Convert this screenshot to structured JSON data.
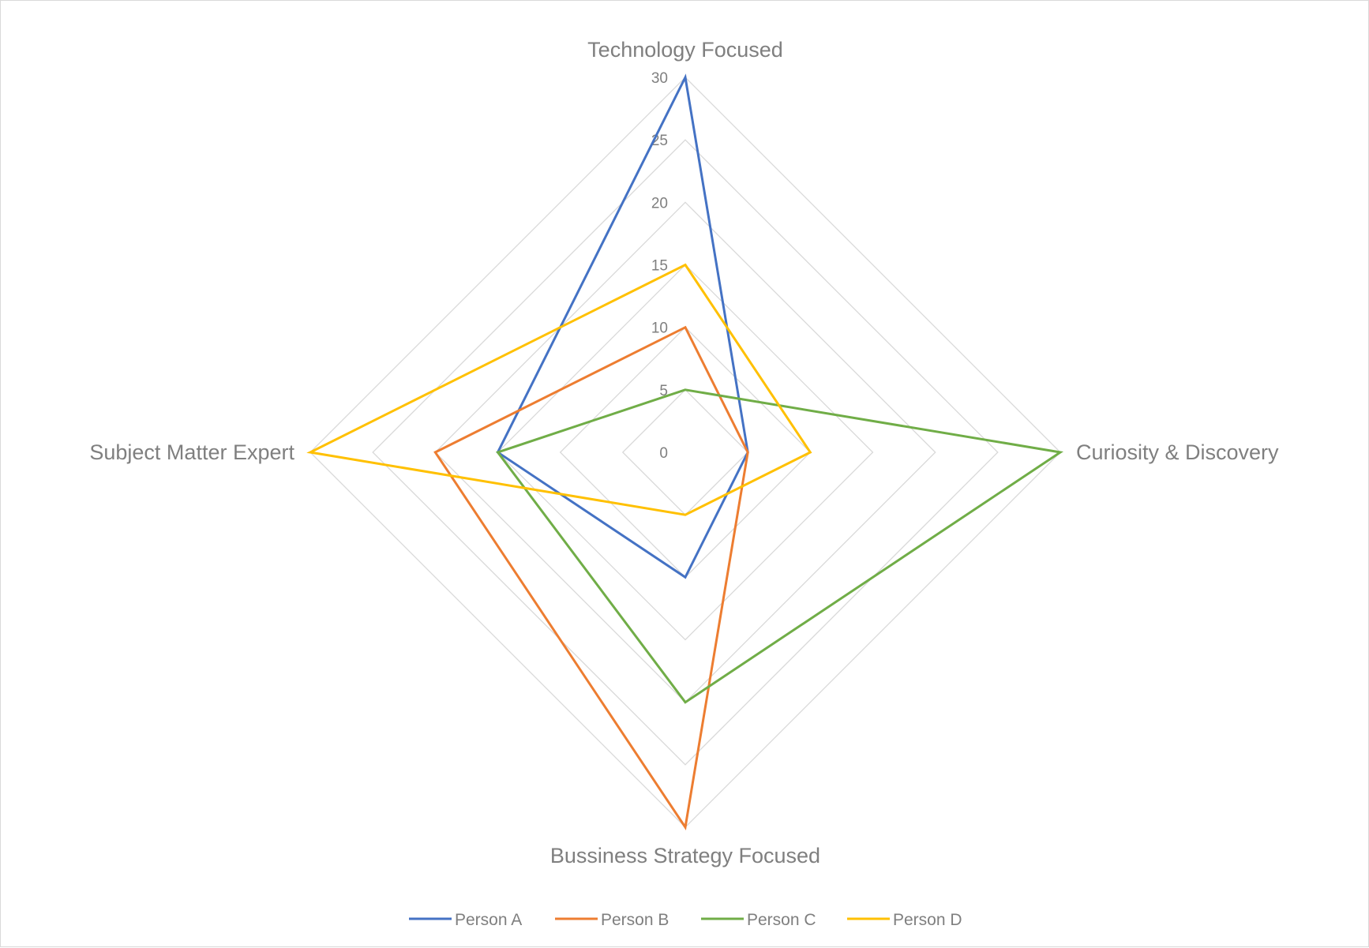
{
  "chart_data": {
    "type": "radar",
    "categories": [
      "Technology Focused",
      "Curiosity & Discovery",
      "Bussiness Strategy Focused",
      "Subject Matter Expert"
    ],
    "series": [
      {
        "name": "Person A",
        "color": "#4472c4",
        "values": [
          30,
          5,
          10,
          15
        ]
      },
      {
        "name": "Person B",
        "color": "#ed7d31",
        "values": [
          10,
          5,
          30,
          20
        ]
      },
      {
        "name": "Person C",
        "color": "#70ad47",
        "values": [
          5,
          30,
          20,
          15
        ]
      },
      {
        "name": "Person D",
        "color": "#ffc000",
        "values": [
          15,
          10,
          5,
          30
        ]
      }
    ],
    "rlim": [
      0,
      30
    ],
    "ticks": [
      0,
      5,
      10,
      15,
      20,
      25,
      30
    ],
    "grid": true,
    "legend": "bottom"
  }
}
